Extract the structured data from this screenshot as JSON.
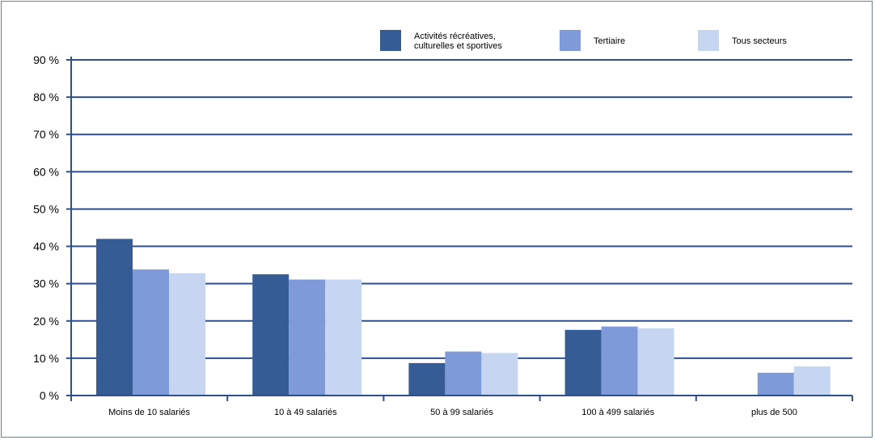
{
  "chart_data": {
    "type": "bar",
    "categories": [
      "Moins de 10 salariés",
      "10 à 49 salariés",
      "50 à 99 salariés",
      "100 à 499 salariés",
      "plus de 500"
    ],
    "series": [
      {
        "name": "Activités récréatives, culturelles et sportives",
        "legend_lines": [
          "Activités récréatives,",
          "culturelles et sportives"
        ],
        "color": "#365c96",
        "values": [
          42.0,
          32.5,
          8.7,
          17.6,
          0
        ]
      },
      {
        "name": "Tertiaire",
        "legend_lines": [
          "Tertiaire"
        ],
        "color": "#7f9ad8",
        "values": [
          33.8,
          31.1,
          11.8,
          18.5,
          6.1
        ]
      },
      {
        "name": "Tous secteurs",
        "legend_lines": [
          "Tous secteurs"
        ],
        "color": "#c6d6f0",
        "values": [
          32.8,
          31.1,
          11.4,
          18.0,
          7.8
        ]
      }
    ],
    "yticks": [
      "0 %",
      "10 %",
      "20 %",
      "30 %",
      "40 %",
      "50 %",
      "60 %",
      "70 %",
      "80 %",
      "90 %"
    ],
    "ylim": [
      0,
      90
    ],
    "grid": true,
    "legend_position": "top-right",
    "axis_color": "#2e4e8c"
  }
}
